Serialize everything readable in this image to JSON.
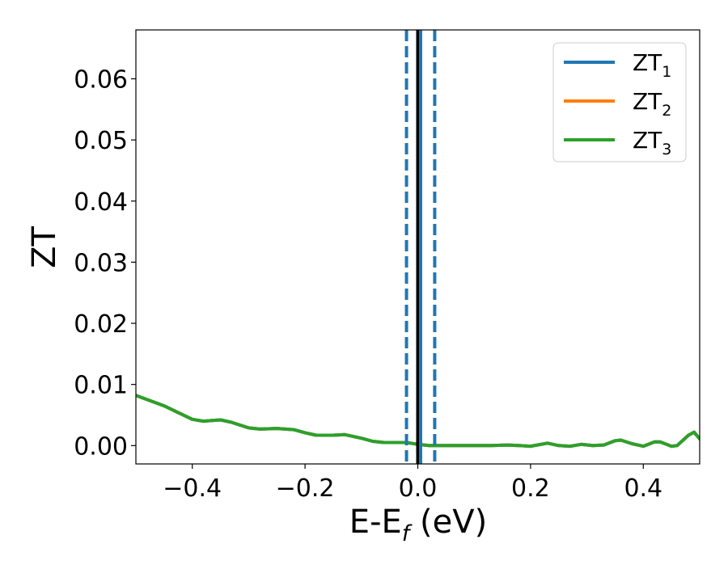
{
  "chart_data": {
    "type": "line",
    "title": "",
    "xlabel": "E-E",
    "xlabel_sub": "f",
    "xlabel_unit": "(eV)",
    "ylabel": "ZT",
    "xlim": [
      -0.5,
      0.5
    ],
    "ylim": [
      -0.003,
      0.068
    ],
    "grid": false,
    "legend_position": "top-right",
    "xticks": [
      {
        "value": -0.4,
        "label": "−0.4"
      },
      {
        "value": -0.2,
        "label": "−0.2"
      },
      {
        "value": 0.0,
        "label": "0.0"
      },
      {
        "value": 0.2,
        "label": "0.2"
      },
      {
        "value": 0.4,
        "label": "0.4"
      }
    ],
    "yticks": [
      {
        "value": 0.0,
        "label": "0.00"
      },
      {
        "value": 0.01,
        "label": "0.01"
      },
      {
        "value": 0.02,
        "label": "0.02"
      },
      {
        "value": 0.03,
        "label": "0.03"
      },
      {
        "value": 0.04,
        "label": "0.04"
      },
      {
        "value": 0.05,
        "label": "0.05"
      },
      {
        "value": 0.06,
        "label": "0.06"
      }
    ],
    "x": [
      -0.5,
      -0.45,
      -0.4,
      -0.38,
      -0.35,
      -0.33,
      -0.3,
      -0.28,
      -0.25,
      -0.22,
      -0.2,
      -0.18,
      -0.15,
      -0.13,
      -0.1,
      -0.08,
      -0.06,
      -0.04,
      -0.02,
      0.0,
      0.02,
      0.05,
      0.08,
      0.1,
      0.13,
      0.16,
      0.18,
      0.2,
      0.23,
      0.25,
      0.27,
      0.29,
      0.31,
      0.33,
      0.35,
      0.36,
      0.38,
      0.4,
      0.42,
      0.43,
      0.45,
      0.46,
      0.48,
      0.49,
      0.5
    ],
    "series": [
      {
        "name": "ZT",
        "name_sub": "1",
        "color": "#1f77b4",
        "values": [
          0.0082,
          0.0065,
          0.0043,
          0.004,
          0.0042,
          0.0038,
          0.0029,
          0.0027,
          0.0028,
          0.0026,
          0.0021,
          0.0017,
          0.0017,
          0.0018,
          0.0012,
          0.0007,
          0.0005,
          0.0005,
          0.0005,
          0.0002,
          0.0,
          0.0,
          0.0,
          0.0,
          0.0,
          0.0001,
          0.0,
          -0.0001,
          0.0004,
          0.0,
          -0.0001,
          0.0002,
          0.0,
          0.0001,
          0.0008,
          0.0009,
          0.0003,
          -0.0001,
          0.0006,
          0.0006,
          -0.0001,
          0.0,
          0.0017,
          0.0022,
          0.0011
        ]
      },
      {
        "name": "ZT",
        "name_sub": "2",
        "color": "#ff7f0e",
        "values": [
          0.0082,
          0.0065,
          0.0043,
          0.004,
          0.0042,
          0.0038,
          0.0029,
          0.0027,
          0.0028,
          0.0026,
          0.0021,
          0.0017,
          0.0017,
          0.0018,
          0.0012,
          0.0007,
          0.0005,
          0.0005,
          0.0005,
          0.0002,
          0.0,
          0.0,
          0.0,
          0.0,
          0.0,
          0.0001,
          0.0,
          -0.0001,
          0.0004,
          0.0,
          -0.0001,
          0.0002,
          0.0,
          0.0001,
          0.0008,
          0.0009,
          0.0003,
          -0.0001,
          0.0006,
          0.0006,
          -0.0001,
          0.0,
          0.0017,
          0.0022,
          0.0011
        ]
      },
      {
        "name": "ZT",
        "name_sub": "3",
        "color": "#2ca02c",
        "values": [
          0.0082,
          0.0065,
          0.0043,
          0.004,
          0.0042,
          0.0038,
          0.0029,
          0.0027,
          0.0028,
          0.0026,
          0.0021,
          0.0017,
          0.0017,
          0.0018,
          0.0012,
          0.0007,
          0.0005,
          0.0005,
          0.0005,
          0.0002,
          0.0,
          0.0,
          0.0,
          0.0,
          0.0,
          0.0001,
          0.0,
          -0.0001,
          0.0004,
          0.0,
          -0.0001,
          0.0002,
          0.0,
          0.0001,
          0.0008,
          0.0009,
          0.0003,
          -0.0001,
          0.0006,
          0.0006,
          -0.0001,
          0.0,
          0.0017,
          0.0022,
          0.0011
        ]
      }
    ],
    "vlines": [
      {
        "x": 0.0,
        "color": "#000000",
        "style": "solid"
      },
      {
        "x": -0.02,
        "color": "#1f77b4",
        "style": "dashed"
      },
      {
        "x": 0.005,
        "color": "#1f77b4",
        "style": "solid"
      },
      {
        "x": 0.03,
        "color": "#1f77b4",
        "style": "dashed"
      }
    ]
  }
}
